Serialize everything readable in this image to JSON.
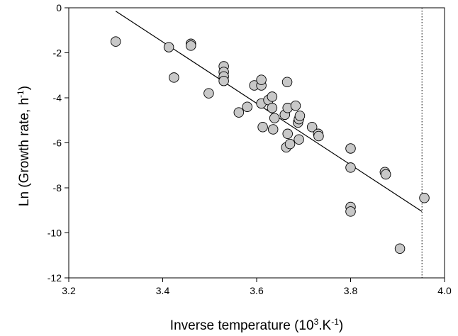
{
  "chart_data": {
    "type": "scatter",
    "title": "",
    "xlabel_parts": {
      "before": "Inverse temperature (10",
      "sup1": "3",
      "middle": ".K",
      "sup2": "-1",
      "after": ")"
    },
    "ylabel_parts": {
      "before": "Ln (Growth rate, h",
      "sup": "-1",
      "after": ")"
    },
    "xlim": [
      3.2,
      4.0
    ],
    "ylim": [
      -12,
      0
    ],
    "x_ticks": [
      3.2,
      3.4,
      3.6,
      3.8,
      4.0
    ],
    "x_tick_labels": [
      "3.2",
      "3.4",
      "3.6",
      "3.8",
      "4.0"
    ],
    "y_ticks": [
      -12,
      -10,
      -8,
      -6,
      -4,
      -2,
      0
    ],
    "y_tick_labels": [
      "-12",
      "-10",
      "-8",
      "-6",
      "-4",
      "-2",
      "0"
    ],
    "grid": false,
    "legend": "none",
    "series": [
      {
        "points": [
          [
            3.3,
            -1.5
          ],
          [
            3.413,
            -1.75
          ],
          [
            3.424,
            -3.1
          ],
          [
            3.46,
            -1.6
          ],
          [
            3.46,
            -1.68
          ],
          [
            3.498,
            -3.8
          ],
          [
            3.53,
            -2.6
          ],
          [
            3.53,
            -2.85
          ],
          [
            3.53,
            -3.05
          ],
          [
            3.53,
            -3.25
          ],
          [
            3.562,
            -4.65
          ],
          [
            3.58,
            -4.4
          ],
          [
            3.595,
            -3.45
          ],
          [
            3.61,
            -3.45
          ],
          [
            3.61,
            -3.2
          ],
          [
            3.61,
            -4.25
          ],
          [
            3.613,
            -5.3
          ],
          [
            3.625,
            -4.1
          ],
          [
            3.633,
            -3.95
          ],
          [
            3.633,
            -4.45
          ],
          [
            3.635,
            -5.4
          ],
          [
            3.638,
            -4.9
          ],
          [
            3.66,
            -4.75
          ],
          [
            3.663,
            -6.2
          ],
          [
            3.665,
            -3.3
          ],
          [
            3.666,
            -4.45
          ],
          [
            3.666,
            -5.6
          ],
          [
            3.671,
            -6.05
          ],
          [
            3.683,
            -4.35
          ],
          [
            3.688,
            -5.1
          ],
          [
            3.69,
            -5.85
          ],
          [
            3.69,
            -4.95
          ],
          [
            3.692,
            -4.8
          ],
          [
            3.718,
            -5.3
          ],
          [
            3.731,
            -5.6
          ],
          [
            3.732,
            -5.7
          ],
          [
            3.8,
            -6.25
          ],
          [
            3.8,
            -7.1
          ],
          [
            3.8,
            -8.85
          ],
          [
            3.8,
            -9.05
          ],
          [
            3.873,
            -7.3
          ],
          [
            3.875,
            -7.4
          ],
          [
            3.905,
            -10.7
          ],
          [
            3.957,
            -8.45
          ]
        ]
      }
    ],
    "fit_line": {
      "x": [
        3.3,
        3.952
      ],
      "y": [
        -0.15,
        -9.05
      ]
    },
    "reference_line": {
      "x": 3.952,
      "style": "dotted"
    },
    "marker_fill": "#c8c8c8",
    "marker_stroke": "#000000"
  }
}
